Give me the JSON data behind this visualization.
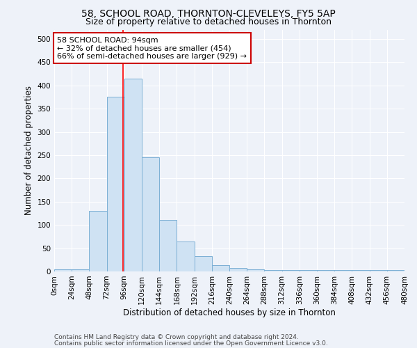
{
  "title": "58, SCHOOL ROAD, THORNTON-CLEVELEYS, FY5 5AP",
  "subtitle": "Size of property relative to detached houses in Thornton",
  "xlabel": "Distribution of detached houses by size in Thornton",
  "ylabel": "Number of detached properties",
  "bin_edges": [
    0,
    24,
    48,
    72,
    96,
    120,
    144,
    168,
    192,
    216,
    240,
    264,
    288,
    312,
    336,
    360,
    384,
    408,
    432,
    456,
    480
  ],
  "bar_heights": [
    5,
    5,
    130,
    375,
    415,
    245,
    110,
    65,
    33,
    14,
    7,
    5,
    3,
    3,
    3,
    3,
    3,
    3,
    3,
    3
  ],
  "bar_color": "#cfe2f3",
  "bar_edge_color": "#7bafd4",
  "red_line_x": 94,
  "ylim": [
    0,
    520
  ],
  "xlim": [
    0,
    480
  ],
  "yticks": [
    0,
    50,
    100,
    150,
    200,
    250,
    300,
    350,
    400,
    450,
    500
  ],
  "annotation_text": "58 SCHOOL ROAD: 94sqm\n← 32% of detached houses are smaller (454)\n66% of semi-detached houses are larger (929) →",
  "annotation_box_color": "#ffffff",
  "annotation_box_edge": "#cc0000",
  "footnote_line1": "Contains HM Land Registry data © Crown copyright and database right 2024.",
  "footnote_line2": "Contains public sector information licensed under the Open Government Licence v3.0.",
  "background_color": "#eef2f9",
  "grid_color": "#ffffff",
  "title_fontsize": 10,
  "subtitle_fontsize": 9,
  "axis_label_fontsize": 8.5,
  "tick_fontsize": 7.5,
  "annotation_fontsize": 8,
  "footnote_fontsize": 6.5
}
